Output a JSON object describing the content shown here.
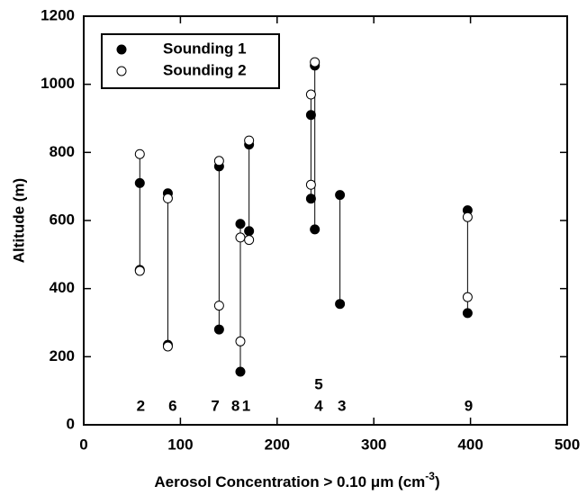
{
  "chart_data": {
    "type": "scatter",
    "xlabel": [
      "Aerosol Concentration > 0.10 μm (cm",
      "-3",
      ")"
    ],
    "ylabel": "Altitude (m)",
    "xlim": [
      0,
      500
    ],
    "xticks": [
      0,
      100,
      200,
      300,
      400,
      500
    ],
    "ylim": [
      0,
      1200
    ],
    "yticks": [
      0,
      200,
      400,
      600,
      800,
      1000,
      1200
    ],
    "legend": "upper left",
    "series": [
      {
        "name": "Sounding 1",
        "color": "#000000",
        "marker": "filled",
        "x": [
          58,
          58,
          87,
          87,
          140,
          140,
          162,
          162,
          171,
          171,
          235,
          235,
          239,
          239,
          265,
          265,
          397,
          397
        ],
        "values": [
          710,
          455,
          680,
          235,
          759,
          280,
          590,
          156,
          823,
          569,
          910,
          664,
          1055,
          574,
          675,
          355,
          630,
          328
        ]
      },
      {
        "name": "Sounding 2",
        "color": "#000000",
        "marker": "open",
        "x": [
          58,
          58,
          87,
          87,
          140,
          140,
          162,
          162,
          171,
          171,
          235,
          235,
          239,
          397,
          397
        ],
        "values": [
          795,
          452,
          665,
          230,
          775,
          350,
          550,
          245,
          835,
          543,
          970,
          705,
          1065,
          610,
          375
        ]
      }
    ],
    "annotations": [
      {
        "text": "2",
        "x": 59,
        "y": 53
      },
      {
        "text": "6",
        "x": 92,
        "y": 53
      },
      {
        "text": "7",
        "x": 136,
        "y": 53
      },
      {
        "text": "8",
        "x": 157,
        "y": 53
      },
      {
        "text": "1",
        "x": 168,
        "y": 53
      },
      {
        "text": "5",
        "x": 243,
        "y": 116
      },
      {
        "text": "4",
        "x": 243,
        "y": 53
      },
      {
        "text": "3",
        "x": 267,
        "y": 53
      },
      {
        "text": "9",
        "x": 398,
        "y": 53
      }
    ]
  }
}
